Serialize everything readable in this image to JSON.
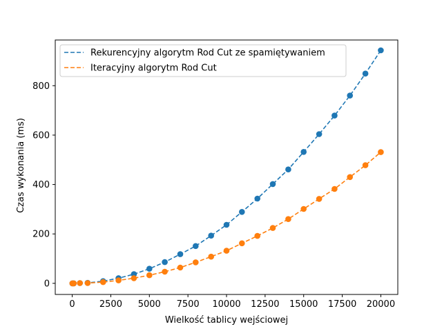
{
  "chart_data": {
    "type": "line",
    "title": "",
    "xlabel": "Wielkość tablicy wejściowej",
    "ylabel": "Czas wykonania (ms)",
    "xlim": [
      -1100,
      21100
    ],
    "ylim": [
      -45,
      985
    ],
    "xticks": [
      0,
      2500,
      5000,
      7500,
      10000,
      12500,
      15000,
      17500,
      20000
    ],
    "yticks": [
      0,
      200,
      400,
      600,
      800
    ],
    "grid": false,
    "legend_position": "top-left",
    "line_style": "dashed with circle markers",
    "x": [
      10,
      100,
      500,
      1000,
      2000,
      3000,
      4000,
      5000,
      6000,
      7000,
      8000,
      9000,
      10000,
      11000,
      12000,
      13000,
      14000,
      15000,
      16000,
      17000,
      18000,
      19000,
      20000
    ],
    "series": [
      {
        "name": "Rekurencyjny algorytm Rod Cut ze spamiętywaniem",
        "color": "#1f77b4",
        "values": [
          0,
          0,
          1,
          2,
          9,
          21,
          37,
          59,
          86,
          118,
          151,
          193,
          237,
          289,
          343,
          402,
          461,
          532,
          604,
          679,
          760,
          849,
          943
        ]
      },
      {
        "name": "Iteracyjny algorytm Rod Cut",
        "color": "#ff7f0e",
        "values": [
          0,
          0,
          1,
          1,
          5,
          12,
          21,
          33,
          47,
          64,
          85,
          108,
          132,
          162,
          192,
          224,
          260,
          301,
          342,
          382,
          430,
          478,
          531
        ]
      }
    ]
  }
}
